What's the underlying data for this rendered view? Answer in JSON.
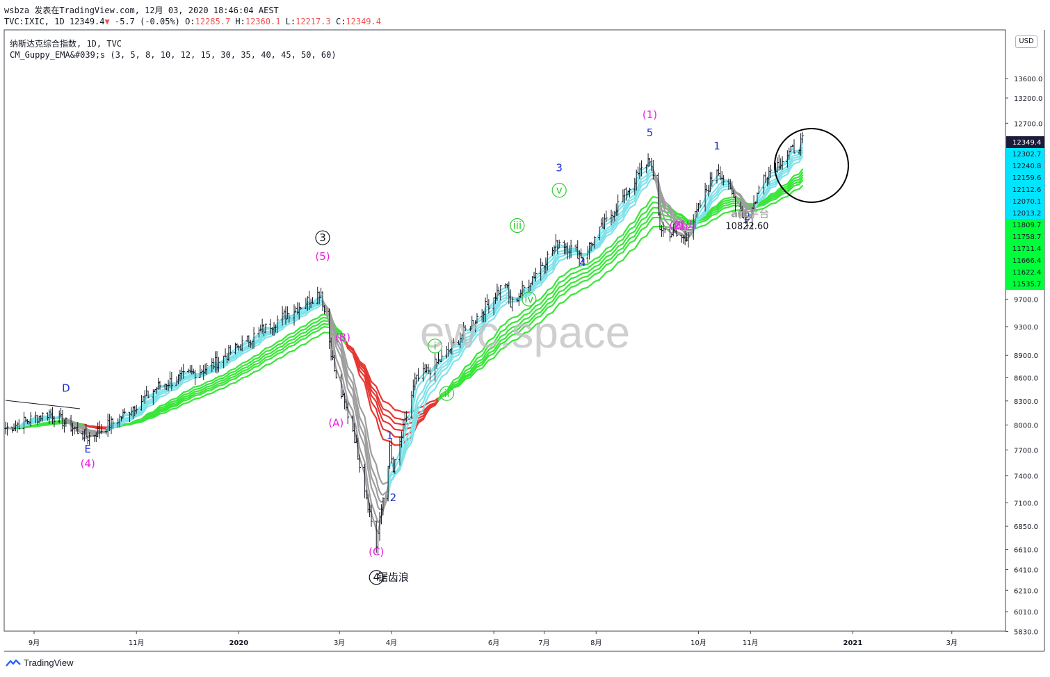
{
  "header": {
    "line1": "wsbza 发表在TradingView.com, 12月 03, 2020 18:46:04 AEST",
    "symbol": "TVC:IXIC, 1D",
    "last": "12349.4",
    "arrow": "▼",
    "change": "-5.7 (-0.05%)",
    "o_label": "O:",
    "o_val": "12285.7",
    "h_label": "H:",
    "h_val": "12360.1",
    "l_label": "L:",
    "l_val": "12217.3",
    "c_label": "C:",
    "c_val": "12349.4"
  },
  "legend": {
    "line1": "纳斯达克综合指数, 1D, TVC",
    "line2": "CM_Guppy_EMA&#039;s (3, 5, 8, 10, 12, 15, 30, 35, 40, 45, 50, 60)"
  },
  "currency_button": "USD",
  "watermark": "ewc.space",
  "footer": {
    "brand": "TradingView"
  },
  "colors": {
    "fast_ema": "#7fe3ea",
    "slow_ema_bull": "#3be63b",
    "slow_ema_bear": "#e53935",
    "neutral": "#9e9e9e",
    "wave_blue": "#1e2fcf",
    "wave_magenta": "#e91ee3",
    "wave_green": "#2ecc2e",
    "last_price_bg": "#1b1b3a"
  },
  "chart_data": {
    "type": "line",
    "title": "纳斯达克综合指数, 1D, TVC",
    "x_ticks": [
      {
        "label": "9月",
        "date": "2019-09-01"
      },
      {
        "label": "11月",
        "date": "2019-11-01"
      },
      {
        "label": "2020",
        "date": "2020-01-01"
      },
      {
        "label": "3月",
        "date": "2020-03-01"
      },
      {
        "label": "4月",
        "date": "2020-04-01"
      },
      {
        "label": "6月",
        "date": "2020-06-01"
      },
      {
        "label": "7月",
        "date": "2020-07-01"
      },
      {
        "label": "8月",
        "date": "2020-08-01"
      },
      {
        "label": "10月",
        "date": "2020-10-01"
      },
      {
        "label": "11月",
        "date": "2020-11-01"
      },
      {
        "label": "2021",
        "date": "2021-01-01"
      },
      {
        "label": "3月",
        "date": "2021-03-01"
      }
    ],
    "y_scale": "log",
    "y_ticks": [
      "13600.0",
      "13200.0",
      "12700.0",
      "9700.0",
      "9300.0",
      "8900.0",
      "8600.0",
      "8300.0",
      "8000.0",
      "7700.0",
      "7400.0",
      "7100.0",
      "6850.0",
      "6610.0",
      "6410.0",
      "6210.0",
      "6010.0",
      "5830.0"
    ],
    "ylim": [
      5800,
      14500
    ],
    "price_labels": [
      {
        "text": "12349.4",
        "kind": "last"
      },
      {
        "text": "12302.7",
        "kind": "fast"
      },
      {
        "text": "12240.8",
        "kind": "fast"
      },
      {
        "text": "12159.6",
        "kind": "fast"
      },
      {
        "text": "12112.6",
        "kind": "fast"
      },
      {
        "text": "12070.1",
        "kind": "fast"
      },
      {
        "text": "12013.2",
        "kind": "fast"
      },
      {
        "text": "11809.7",
        "kind": "slow"
      },
      {
        "text": "11758.7",
        "kind": "slow"
      },
      {
        "text": "11711.4",
        "kind": "slow"
      },
      {
        "text": "11666.4",
        "kind": "slow"
      },
      {
        "text": "11622.4",
        "kind": "slow"
      },
      {
        "text": "11535.7",
        "kind": "slow"
      }
    ],
    "price_path": [
      {
        "date": "2019-08-15",
        "close": 7960
      },
      {
        "date": "2019-09-10",
        "close": 8150
      },
      {
        "date": "2019-10-03",
        "close": 7850
      },
      {
        "date": "2019-10-20",
        "close": 8050
      },
      {
        "date": "2019-11-15",
        "close": 8500
      },
      {
        "date": "2019-12-15",
        "close": 8750
      },
      {
        "date": "2020-01-15",
        "close": 9250
      },
      {
        "date": "2020-02-19",
        "close": 9810
      },
      {
        "date": "2020-02-28",
        "close": 8570
      },
      {
        "date": "2020-03-09",
        "close": 7950
      },
      {
        "date": "2020-03-23",
        "close": 6650
      },
      {
        "date": "2020-03-31",
        "close": 7700
      },
      {
        "date": "2020-04-02",
        "close": 7450
      },
      {
        "date": "2020-04-15",
        "close": 8550
      },
      {
        "date": "2020-05-01",
        "close": 8850
      },
      {
        "date": "2020-06-08",
        "close": 9950
      },
      {
        "date": "2020-06-11",
        "close": 9600
      },
      {
        "date": "2020-07-10",
        "close": 10600
      },
      {
        "date": "2020-07-24",
        "close": 10360
      },
      {
        "date": "2020-09-02",
        "close": 12050
      },
      {
        "date": "2020-09-08",
        "close": 10820
      },
      {
        "date": "2020-09-23",
        "close": 10630
      },
      {
        "date": "2020-10-12",
        "close": 11870
      },
      {
        "date": "2020-10-30",
        "close": 10910
      },
      {
        "date": "2020-11-09",
        "close": 11720
      },
      {
        "date": "2020-12-02",
        "close": 12349
      }
    ],
    "wave_labels": [
      {
        "text": "D",
        "date": "2019-09-20",
        "price": 8420,
        "color": "blue"
      },
      {
        "text": "E",
        "date": "2019-10-03",
        "price": 7670,
        "color": "blue"
      },
      {
        "text": "(4)",
        "date": "2019-10-03",
        "price": 7500,
        "color": "magenta"
      },
      {
        "text": "3",
        "date": "2020-02-20",
        "price": 10600,
        "color": "black",
        "circled": true
      },
      {
        "text": "(5)",
        "date": "2020-02-20",
        "price": 10300,
        "color": "magenta"
      },
      {
        "text": "(A)",
        "date": "2020-02-28",
        "price": 7980,
        "color": "magenta"
      },
      {
        "text": "(B)",
        "date": "2020-03-03",
        "price": 9100,
        "color": "magenta"
      },
      {
        "text": "(C)",
        "date": "2020-03-23",
        "price": 6550,
        "color": "magenta"
      },
      {
        "text": "4",
        "date": "2020-03-23",
        "price": 6300,
        "color": "black",
        "circled": true
      },
      {
        "text": "锯齿浪",
        "date": "2020-04-02",
        "price": 6300,
        "color": "black"
      },
      {
        "text": "1",
        "date": "2020-03-31",
        "price": 7830,
        "color": "blue"
      },
      {
        "text": "2",
        "date": "2020-04-02",
        "price": 7120,
        "color": "blue"
      },
      {
        "text": "i",
        "date": "2020-04-27",
        "price": 8980,
        "color": "green",
        "circled": true
      },
      {
        "text": "ii",
        "date": "2020-05-04",
        "price": 8350,
        "color": "green",
        "circled": true
      },
      {
        "text": "iii",
        "date": "2020-06-15",
        "price": 10800,
        "color": "green",
        "circled": true
      },
      {
        "text": "iv",
        "date": "2020-06-22",
        "price": 9650,
        "color": "green",
        "circled": true
      },
      {
        "text": "v",
        "date": "2020-07-10",
        "price": 11400,
        "color": "green",
        "circled": true
      },
      {
        "text": "3",
        "date": "2020-07-10",
        "price": 11800,
        "color": "blue"
      },
      {
        "text": "4",
        "date": "2020-07-24",
        "price": 10200,
        "color": "blue"
      },
      {
        "text": "(1)",
        "date": "2020-09-02",
        "price": 12800,
        "color": "magenta"
      },
      {
        "text": "5",
        "date": "2020-09-02",
        "price": 12450,
        "color": "blue"
      },
      {
        "text": "(2)",
        "date": "2020-09-18",
        "price": 10800,
        "color": "magenta"
      },
      {
        "text": "锯齿",
        "date": "2020-09-23",
        "price": 10800,
        "color": "magenta"
      },
      {
        "text": "1",
        "date": "2020-10-12",
        "price": 12200,
        "color": "blue"
      },
      {
        "text": "2",
        "date": "2020-10-30",
        "price": 10950,
        "color": "blue"
      },
      {
        "text": "alt",
        "date": "2020-10-25",
        "price": 11000,
        "color": "gray"
      },
      {
        "text": "(2)",
        "date": "2020-10-29",
        "price": 11000,
        "color": "gray"
      },
      {
        "text": "平台",
        "date": "2020-11-06",
        "price": 11000,
        "color": "gray"
      },
      {
        "text": "10822.60",
        "date": "2020-10-30",
        "price": 10800,
        "color": "dark"
      }
    ]
  }
}
